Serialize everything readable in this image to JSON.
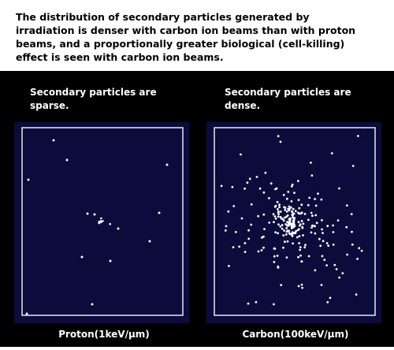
{
  "header": {
    "lines": [
      "The distribution of secondary particles generated by",
      "irradiation is denser with carbon ion beams than with proton",
      "beams, and a proportionally greater biological (cell-killing)",
      "effect is seen with carbon ion beams."
    ]
  },
  "panels": [
    {
      "caption": [
        "Secondary particles are",
        "sparse."
      ],
      "label": "Proton(1keV/μm)"
    },
    {
      "caption": [
        "Secondary particles are",
        "dense."
      ],
      "label": "Carbon(100keV/μm)"
    }
  ]
}
